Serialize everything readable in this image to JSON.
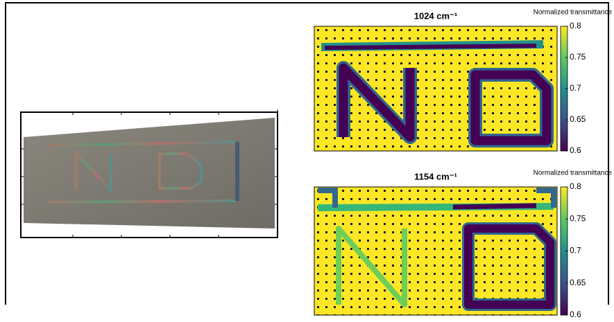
{
  "chart_data": [
    {
      "type": "heatmap",
      "title": "1024 cm⁻¹",
      "colorbar_label": "Normalized transmittance",
      "colormap": "viridis",
      "clim": [
        0.6,
        0.8
      ],
      "cticks": [
        0.6,
        0.65,
        0.7,
        0.75,
        0.8
      ]
    },
    {
      "type": "heatmap",
      "title": "1154 cm⁻¹",
      "colorbar_label": "Normalized transmittance",
      "colormap": "viridis",
      "clim": [
        0.6,
        0.8
      ],
      "cticks": [
        0.6,
        0.65,
        0.7,
        0.75,
        0.8
      ]
    }
  ]
}
